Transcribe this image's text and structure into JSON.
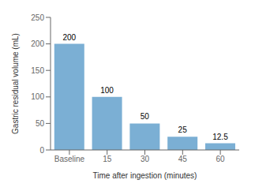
{
  "chart_data": {
    "type": "bar",
    "categories": [
      "Baseline",
      "15",
      "30",
      "45",
      "60"
    ],
    "values": [
      200,
      100,
      50,
      25,
      12.5
    ],
    "color": "#7bafd4",
    "xlabel": "Time after ingestion (minutes)",
    "ylabel": "Gastric residual volume (mL)",
    "ylim": [
      0,
      250
    ],
    "yticks": [
      0,
      50,
      100,
      150,
      200,
      250
    ],
    "data_labels": true,
    "grid": false
  }
}
